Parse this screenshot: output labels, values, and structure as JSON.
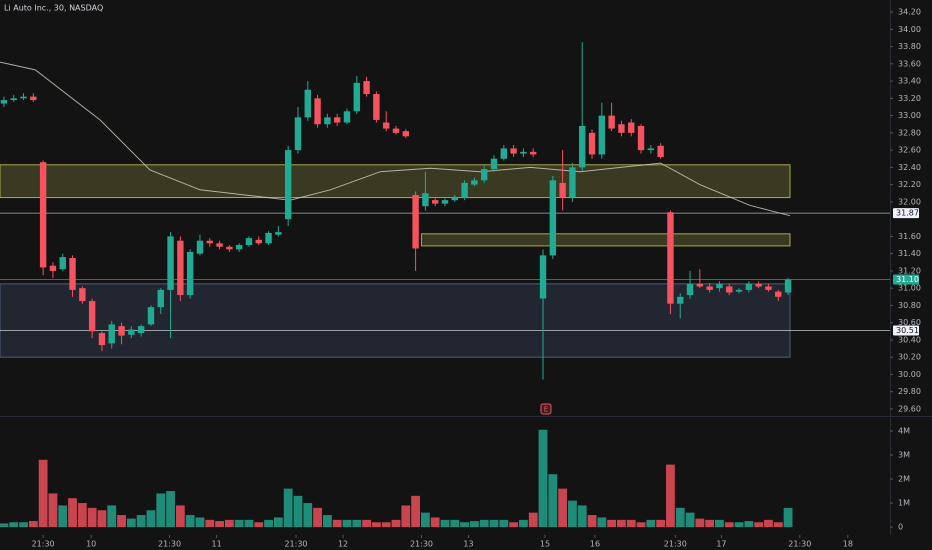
{
  "chart_data": {
    "type": "candlestick",
    "title": "Li Auto Inc., 30, NASDAQ",
    "up_color": "#22ab94",
    "down_color": "#f7525f",
    "open": [
      33.14,
      33.18,
      33.2,
      33.22,
      32.46,
      31.26,
      31.22,
      31.35,
      31.0,
      30.85,
      30.48,
      30.36,
      30.56,
      30.46,
      30.48,
      30.58,
      30.78,
      30.98,
      31.55,
      30.92,
      31.4,
      31.55,
      31.52,
      31.48,
      31.45,
      31.5,
      31.56,
      31.52,
      31.62,
      31.8,
      32.6,
      32.98,
      33.2,
      32.9,
      32.98,
      32.92,
      33.05,
      33.4,
      33.25,
      32.92,
      32.85,
      32.82,
      32.08,
      31.95,
      32.02,
      31.98,
      32.02,
      32.05,
      32.2,
      32.25,
      32.38,
      32.5,
      32.62,
      32.56,
      32.58,
      30.88,
      31.38,
      32.22,
      32.05,
      32.4,
      32.8,
      32.55,
      33.0,
      32.9,
      32.92,
      32.88,
      32.6,
      32.65,
      31.88,
      30.82,
      30.92,
      31.05,
      31.02,
      31.0,
      31.02,
      30.96,
      30.98,
      31.05,
      31.02,
      30.96,
      30.95
    ],
    "high": [
      33.22,
      33.24,
      33.26,
      33.26,
      32.48,
      31.3,
      31.4,
      31.38,
      31.02,
      30.88,
      30.5,
      30.62,
      30.6,
      30.56,
      30.58,
      30.8,
      31.0,
      31.65,
      31.6,
      31.45,
      31.62,
      31.58,
      31.55,
      31.5,
      31.52,
      31.6,
      31.6,
      31.66,
      31.72,
      32.65,
      33.1,
      33.4,
      33.24,
      33.02,
      33.02,
      33.08,
      33.46,
      33.45,
      33.28,
      33.05,
      32.88,
      32.84,
      32.12,
      32.35,
      32.06,
      32.04,
      32.08,
      32.25,
      32.28,
      32.42,
      32.54,
      32.66,
      32.66,
      32.62,
      32.62,
      31.45,
      32.3,
      32.6,
      32.45,
      33.85,
      32.84,
      33.15,
      33.15,
      32.94,
      32.96,
      32.9,
      32.66,
      32.68,
      31.9,
      30.94,
      31.2,
      31.22,
      31.06,
      31.08,
      31.05,
      31.0,
      31.08,
      31.08,
      31.05,
      30.98,
      31.12
    ],
    "low": [
      33.1,
      33.16,
      33.18,
      33.16,
      31.15,
      31.12,
      31.2,
      30.9,
      30.82,
      30.42,
      30.27,
      30.3,
      30.35,
      30.42,
      30.44,
      30.56,
      30.7,
      30.42,
      30.85,
      30.88,
      31.38,
      31.48,
      31.45,
      31.42,
      31.42,
      31.48,
      31.5,
      31.5,
      31.6,
      31.72,
      32.56,
      32.94,
      32.86,
      32.86,
      32.88,
      32.9,
      33.02,
      33.22,
      32.92,
      32.82,
      32.78,
      32.74,
      31.2,
      31.9,
      31.95,
      31.95,
      32.0,
      32.02,
      32.18,
      32.22,
      32.35,
      32.48,
      32.52,
      32.52,
      32.52,
      29.94,
      31.34,
      31.9,
      32.0,
      32.36,
      32.5,
      32.5,
      32.82,
      32.76,
      32.76,
      32.56,
      32.56,
      32.5,
      30.7,
      30.65,
      30.88,
      31.0,
      30.95,
      30.96,
      30.92,
      30.94,
      30.95,
      31.0,
      30.96,
      30.85,
      30.92
    ],
    "close": [
      33.18,
      33.2,
      33.22,
      33.18,
      31.24,
      31.2,
      31.36,
      30.98,
      30.85,
      30.5,
      30.34,
      30.58,
      30.45,
      30.52,
      30.56,
      30.78,
      30.98,
      31.6,
      30.92,
      31.42,
      31.55,
      31.52,
      31.48,
      31.45,
      31.5,
      31.58,
      31.52,
      31.64,
      31.65,
      32.6,
      32.98,
      33.3,
      32.9,
      32.98,
      32.92,
      33.05,
      33.38,
      33.25,
      32.95,
      32.85,
      32.8,
      32.76,
      31.46,
      32.1,
      31.98,
      32.02,
      32.05,
      32.22,
      32.25,
      32.38,
      32.5,
      32.62,
      32.56,
      32.58,
      32.55,
      31.38,
      32.25,
      32.05,
      32.4,
      32.88,
      32.55,
      33.0,
      32.85,
      32.8,
      32.8,
      32.6,
      32.62,
      32.52,
      30.82,
      30.9,
      31.05,
      31.02,
      30.98,
      31.05,
      30.95,
      30.98,
      31.05,
      31.02,
      30.98,
      30.9,
      31.1
    ],
    "volume": [
      0.15,
      0.2,
      0.2,
      0.25,
      2.8,
      1.4,
      0.9,
      1.2,
      1.0,
      0.8,
      0.7,
      0.9,
      0.5,
      0.35,
      0.5,
      0.7,
      1.4,
      1.5,
      0.9,
      0.5,
      0.4,
      0.3,
      0.25,
      0.3,
      0.3,
      0.3,
      0.2,
      0.3,
      0.4,
      1.6,
      1.3,
      1.0,
      0.8,
      0.5,
      0.3,
      0.3,
      0.3,
      0.3,
      0.2,
      0.2,
      0.3,
      0.9,
      1.3,
      0.6,
      0.4,
      0.3,
      0.3,
      0.2,
      0.25,
      0.3,
      0.3,
      0.3,
      0.2,
      0.3,
      0.6,
      4.05,
      2.2,
      1.6,
      1.1,
      0.9,
      0.5,
      0.4,
      0.3,
      0.3,
      0.3,
      0.2,
      0.3,
      0.3,
      2.6,
      0.8,
      0.6,
      0.35,
      0.3,
      0.3,
      0.2,
      0.2,
      0.25,
      0.2,
      0.3,
      0.2,
      0.8
    ],
    "xlim": [
      -0.4,
      90.4
    ],
    "xticks": [
      {
        "value": 4,
        "label": "21:30"
      },
      {
        "value": 8.9,
        "label": "10"
      },
      {
        "value": 16.9,
        "label": "21:30"
      },
      {
        "value": 21.7,
        "label": "11"
      },
      {
        "value": 29.8,
        "label": "21:30"
      },
      {
        "value": 34.6,
        "label": "12"
      },
      {
        "value": 42.6,
        "label": "21:30"
      },
      {
        "value": 47.4,
        "label": "13"
      },
      {
        "value": 55.2,
        "label": "15"
      },
      {
        "value": 60.3,
        "label": "16"
      },
      {
        "value": 68.5,
        "label": "21:30"
      },
      {
        "value": 73.2,
        "label": "17"
      },
      {
        "value": 81.2,
        "label": "21:30"
      },
      {
        "value": 86.1,
        "label": "18"
      }
    ],
    "ylim": [
      29.53,
      34.34
    ],
    "yticks": [
      {
        "value": 34.2,
        "label": "34.20"
      },
      {
        "value": 34.0,
        "label": "34.00"
      },
      {
        "value": 33.8,
        "label": "33.80"
      },
      {
        "value": 33.6,
        "label": "33.60"
      },
      {
        "value": 33.4,
        "label": "33.40"
      },
      {
        "value": 33.2,
        "label": "33.20"
      },
      {
        "value": 33.0,
        "label": "33.00"
      },
      {
        "value": 32.8,
        "label": "32.80"
      },
      {
        "value": 32.6,
        "label": "32.60"
      },
      {
        "value": 32.4,
        "label": "32.40"
      },
      {
        "value": 32.2,
        "label": "32.20"
      },
      {
        "value": 32.0,
        "label": "32.00"
      },
      {
        "value": 31.6,
        "label": "31.60"
      },
      {
        "value": 31.4,
        "label": "31.40"
      },
      {
        "value": 31.2,
        "label": "31.20"
      },
      {
        "value": 31.0,
        "label": "31.00"
      },
      {
        "value": 30.8,
        "label": "30.80"
      },
      {
        "value": 30.6,
        "label": "30.60"
      },
      {
        "value": 30.4,
        "label": "30.40"
      },
      {
        "value": 30.2,
        "label": "30.20"
      },
      {
        "value": 30.0,
        "label": "30.00"
      },
      {
        "value": 29.8,
        "label": "29.80"
      },
      {
        "value": 29.6,
        "label": "29.60"
      }
    ],
    "volume_ylim": [
      -0.33,
      4.54
    ],
    "volume_yticks": [
      {
        "value": 4,
        "label": "4M"
      },
      {
        "value": 3,
        "label": "3M"
      },
      {
        "value": 2,
        "label": "2M"
      },
      {
        "value": 1,
        "label": "1M"
      },
      0
    ],
    "ma": {
      "color": "#d8cfc0",
      "x": [
        -0.4,
        3.2,
        9.8,
        14.9,
        20.0,
        29.2,
        33.3,
        38.4,
        43.5,
        48.6,
        53.7,
        58.8,
        62.9,
        67.0,
        71.0,
        76.1,
        80.2
      ],
      "values": [
        33.62,
        33.53,
        32.95,
        32.37,
        32.14,
        32.02,
        32.14,
        32.35,
        32.39,
        32.35,
        32.4,
        32.35,
        32.4,
        32.45,
        32.2,
        31.96,
        31.84
      ]
    },
    "zones": [
      {
        "color": "#c8c85a",
        "x0": -0.4,
        "x1": 80.2,
        "low": 32.05,
        "high": 32.43
      },
      {
        "color": "#c8c85a",
        "x0": 42.6,
        "x1": 80.2,
        "low": 31.49,
        "high": 31.63
      },
      {
        "color": "#5a6f9a",
        "x0": -0.4,
        "x1": 80.2,
        "low": 30.2,
        "high": 31.05
      }
    ],
    "levels": [
      {
        "value": 31.87,
        "color": "#d1d4dc"
      },
      {
        "value": 30.51,
        "color": "#d1d4dc"
      },
      {
        "value": 31.1,
        "label": "31.10",
        "color": "#22ab94"
      }
    ],
    "events": [
      {
        "label": "E",
        "x": 55.3
      }
    ]
  }
}
